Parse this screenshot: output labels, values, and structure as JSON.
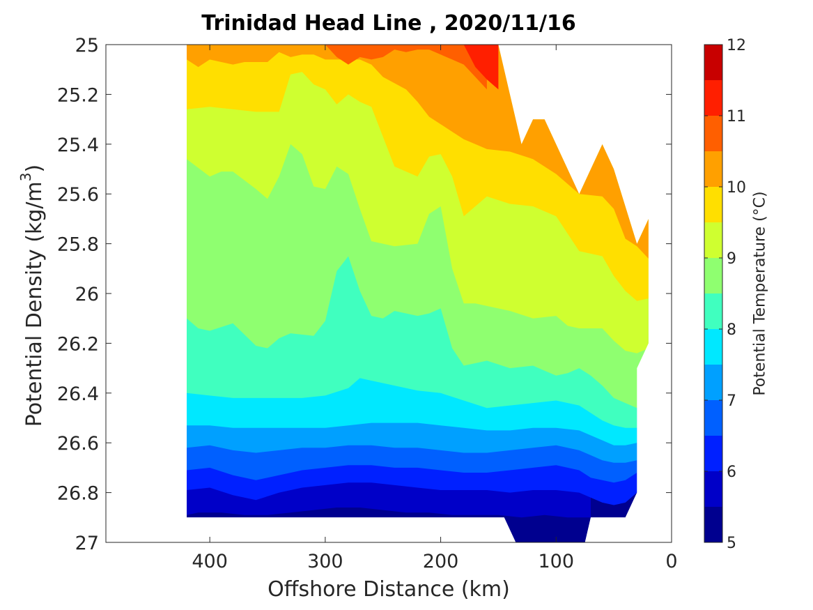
{
  "chart_data": {
    "type": "contour",
    "title": "Trinidad Head Line , 2020/11/16",
    "xlabel": "Offshore Distance (km)",
    "ylabel_text": "Potential Density (kg/m",
    "ylabel_sup": "3",
    "ylabel_close": ")",
    "colorbar_label": "Potential Temperature (°C)",
    "x_axis": {
      "range": [
        490,
        0
      ],
      "reversed": true,
      "ticks": [
        400,
        300,
        200,
        100,
        0
      ]
    },
    "y_axis": {
      "range": [
        25,
        27
      ],
      "reversed": true,
      "ticks": [
        "25",
        "25.2",
        "25.4",
        "25.6",
        "25.8",
        "26",
        "26.2",
        "26.4",
        "26.6",
        "26.8",
        "27"
      ]
    },
    "colorbar": {
      "range": [
        5,
        12
      ],
      "tick_labels": [
        5,
        6,
        7,
        8,
        9,
        10,
        11,
        12
      ],
      "levels": [
        5,
        5.5,
        6,
        6.5,
        7,
        7.5,
        8,
        8.5,
        9,
        9.5,
        10,
        10.5,
        11,
        11.5,
        12
      ],
      "colors": [
        "#00008F",
        "#0000C8",
        "#0020FF",
        "#0060FF",
        "#00A0FF",
        "#00E8FF",
        "#40FFBF",
        "#8FFF70",
        "#CFFF30",
        "#FFDF00",
        "#FFA000",
        "#FF5F00",
        "#FF1F00",
        "#C80000"
      ]
    },
    "data_extent": {
      "x_range": [
        20,
        420
      ],
      "sigma_range": [
        25,
        27
      ]
    },
    "isotherm_boundaries": [
      {
        "bin": [
          5.5,
          6
        ],
        "x": [
          420,
          410,
          390,
          370,
          350,
          330,
          310,
          290,
          270,
          250,
          230,
          210,
          190,
          170,
          150,
          130,
          110,
          90,
          70
        ],
        "sigma": [
          26.89,
          26.88,
          26.88,
          26.89,
          26.89,
          26.88,
          26.87,
          26.86,
          26.86,
          26.87,
          26.88,
          26.88,
          26.89,
          26.89,
          26.89,
          26.9,
          26.89,
          26.9,
          26.9
        ]
      },
      {
        "bin": [
          6,
          6.5
        ],
        "x": [
          420,
          400,
          380,
          360,
          340,
          320,
          300,
          280,
          260,
          240,
          220,
          200,
          180,
          160,
          140,
          120,
          100,
          80,
          70,
          60,
          50,
          40,
          30
        ],
        "sigma": [
          26.79,
          26.78,
          26.81,
          26.83,
          26.8,
          26.78,
          26.77,
          26.76,
          26.76,
          26.77,
          26.78,
          26.79,
          26.79,
          26.79,
          26.8,
          26.79,
          26.79,
          26.8,
          26.82,
          26.84,
          26.85,
          26.84,
          26.8
        ]
      },
      {
        "bin": [
          6.5,
          7
        ],
        "x": [
          420,
          400,
          380,
          360,
          340,
          320,
          300,
          280,
          260,
          240,
          220,
          200,
          180,
          160,
          140,
          120,
          100,
          80,
          70,
          60,
          50,
          40,
          30
        ],
        "sigma": [
          26.71,
          26.7,
          26.73,
          26.75,
          26.73,
          26.71,
          26.7,
          26.69,
          26.69,
          26.7,
          26.7,
          26.71,
          26.72,
          26.72,
          26.71,
          26.7,
          26.69,
          26.71,
          26.74,
          26.75,
          26.76,
          26.75,
          26.72
        ]
      },
      {
        "bin": [
          7,
          7.5
        ],
        "x": [
          420,
          400,
          380,
          360,
          340,
          320,
          300,
          280,
          260,
          240,
          220,
          200,
          180,
          160,
          140,
          120,
          100,
          80,
          70,
          60,
          50,
          40,
          30
        ],
        "sigma": [
          26.62,
          26.61,
          26.63,
          26.64,
          26.63,
          26.62,
          26.62,
          26.61,
          26.61,
          26.62,
          26.62,
          26.63,
          26.64,
          26.64,
          26.63,
          26.62,
          26.61,
          26.63,
          26.65,
          26.67,
          26.68,
          26.68,
          26.67
        ]
      },
      {
        "bin": [
          7.5,
          8
        ],
        "x": [
          420,
          400,
          380,
          360,
          340,
          320,
          300,
          280,
          260,
          240,
          220,
          200,
          180,
          160,
          140,
          120,
          100,
          80,
          70,
          60,
          50,
          40,
          30
        ],
        "sigma": [
          26.53,
          26.53,
          26.54,
          26.54,
          26.54,
          26.54,
          26.54,
          26.53,
          26.52,
          26.52,
          26.52,
          26.53,
          26.54,
          26.55,
          26.55,
          26.54,
          26.54,
          26.55,
          26.57,
          26.59,
          26.61,
          26.61,
          26.6
        ]
      },
      {
        "bin": [
          8,
          8.5
        ],
        "x": [
          420,
          400,
          380,
          360,
          340,
          320,
          300,
          280,
          270,
          260,
          240,
          220,
          200,
          180,
          160,
          140,
          120,
          100,
          80,
          70,
          60,
          50,
          40,
          30
        ],
        "sigma": [
          26.4,
          26.41,
          26.42,
          26.42,
          26.42,
          26.42,
          26.41,
          26.38,
          26.34,
          26.35,
          26.37,
          26.39,
          26.4,
          26.43,
          26.46,
          26.45,
          26.44,
          26.43,
          26.45,
          26.48,
          26.51,
          26.53,
          26.54,
          26.54
        ]
      },
      {
        "bin": [
          8.5,
          9
        ],
        "x": [
          420,
          410,
          400,
          380,
          360,
          350,
          340,
          330,
          310,
          300,
          290,
          280,
          270,
          260,
          250,
          240,
          220,
          210,
          200,
          190,
          180,
          170,
          160,
          140,
          120,
          110,
          100,
          90,
          80,
          70,
          60,
          50,
          40,
          30,
          20
        ],
        "sigma": [
          26.1,
          26.14,
          26.15,
          26.12,
          26.21,
          26.22,
          26.18,
          26.16,
          26.17,
          26.11,
          25.91,
          25.85,
          25.99,
          26.09,
          26.1,
          26.07,
          26.09,
          26.08,
          26.06,
          26.22,
          26.29,
          26.28,
          26.27,
          26.3,
          26.29,
          26.31,
          26.33,
          26.32,
          26.3,
          26.33,
          26.37,
          26.42,
          26.44,
          26.46,
          26.28
        ]
      },
      {
        "bin": [
          9,
          9.5
        ],
        "x": [
          420,
          400,
          390,
          380,
          360,
          350,
          340,
          330,
          320,
          310,
          300,
          290,
          280,
          270,
          260,
          240,
          220,
          210,
          200,
          190,
          180,
          170,
          160,
          140,
          120,
          100,
          90,
          80,
          60,
          50,
          40,
          30,
          20
        ],
        "sigma": [
          25.46,
          25.53,
          25.51,
          25.51,
          25.58,
          25.62,
          25.53,
          25.4,
          25.44,
          25.57,
          25.58,
          25.49,
          25.52,
          25.66,
          25.79,
          25.81,
          25.8,
          25.68,
          25.65,
          25.9,
          26.04,
          26.04,
          26.05,
          26.07,
          26.1,
          26.09,
          26.13,
          26.14,
          26.14,
          26.19,
          26.23,
          26.24,
          26.22
        ]
      },
      {
        "bin": [
          9.5,
          10
        ],
        "x": [
          420,
          400,
          380,
          360,
          340,
          330,
          320,
          310,
          300,
          290,
          280,
          270,
          260,
          250,
          240,
          220,
          210,
          200,
          190,
          180,
          170,
          160,
          140,
          120,
          100,
          80,
          60,
          50,
          40,
          30,
          20
        ],
        "sigma": [
          25.26,
          25.25,
          25.26,
          25.27,
          25.27,
          25.12,
          25.11,
          25.16,
          25.18,
          25.24,
          25.2,
          25.23,
          25.25,
          25.37,
          25.49,
          25.53,
          25.45,
          25.44,
          25.53,
          25.69,
          25.65,
          25.61,
          25.64,
          25.65,
          25.69,
          25.83,
          25.85,
          25.93,
          25.99,
          26.03,
          26.02
        ]
      },
      {
        "bin": [
          10,
          10.5
        ],
        "x": [
          420,
          410,
          400,
          380,
          370,
          360,
          350,
          340,
          330,
          320,
          310,
          300,
          290,
          280,
          270,
          260,
          250,
          230,
          220,
          210,
          200,
          190,
          180,
          170,
          160,
          140,
          120,
          100,
          80,
          60,
          50,
          40,
          30,
          20
        ],
        "sigma": [
          25.06,
          25.09,
          25.06,
          25.08,
          25.07,
          25.07,
          25.07,
          25.03,
          25.05,
          25.04,
          25.04,
          25.06,
          25.06,
          25.06,
          25.06,
          25.08,
          25.13,
          25.18,
          25.23,
          25.29,
          25.32,
          25.35,
          25.38,
          25.4,
          25.42,
          25.43,
          25.46,
          25.52,
          25.6,
          25.61,
          25.66,
          25.78,
          25.81,
          25.86
        ]
      },
      {
        "bin": [
          10.5,
          11
        ],
        "x": [
          300,
          290,
          280,
          270,
          260,
          250,
          240,
          230,
          220,
          210,
          200,
          190,
          180,
          170,
          160
        ],
        "sigma": [
          25.0,
          25.05,
          25.08,
          25.05,
          25.06,
          25.05,
          25.02,
          25.03,
          25.02,
          25.02,
          25.04,
          25.06,
          25.08,
          25.13,
          25.18
        ]
      },
      {
        "bin": [
          11,
          11.5
        ],
        "x": [
          180,
          170,
          160,
          150
        ],
        "sigma": [
          25.0,
          25.09,
          25.14,
          25.18
        ]
      }
    ]
  }
}
